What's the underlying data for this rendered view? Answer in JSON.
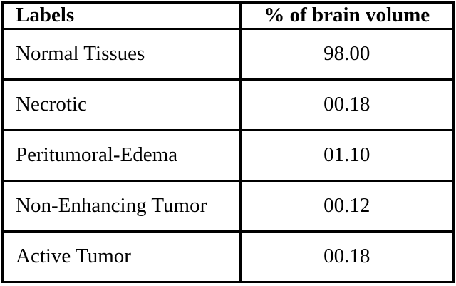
{
  "figure": {
    "type": "data-table",
    "colors": {
      "border": "#000000",
      "text": "#000000",
      "background": "#ffffff"
    }
  },
  "table": {
    "columns": [
      {
        "label": "Labels"
      },
      {
        "label": "% of brain volume"
      }
    ],
    "rows": [
      {
        "label": "Normal Tissues",
        "value": "98.00"
      },
      {
        "label": "Necrotic",
        "value": "00.18"
      },
      {
        "label": "Peritumoral-Edema",
        "value": "01.10"
      },
      {
        "label": "Non-Enhancing Tumor",
        "value": "00.12"
      },
      {
        "label": "Active Tumor",
        "value": "00.18"
      }
    ]
  }
}
